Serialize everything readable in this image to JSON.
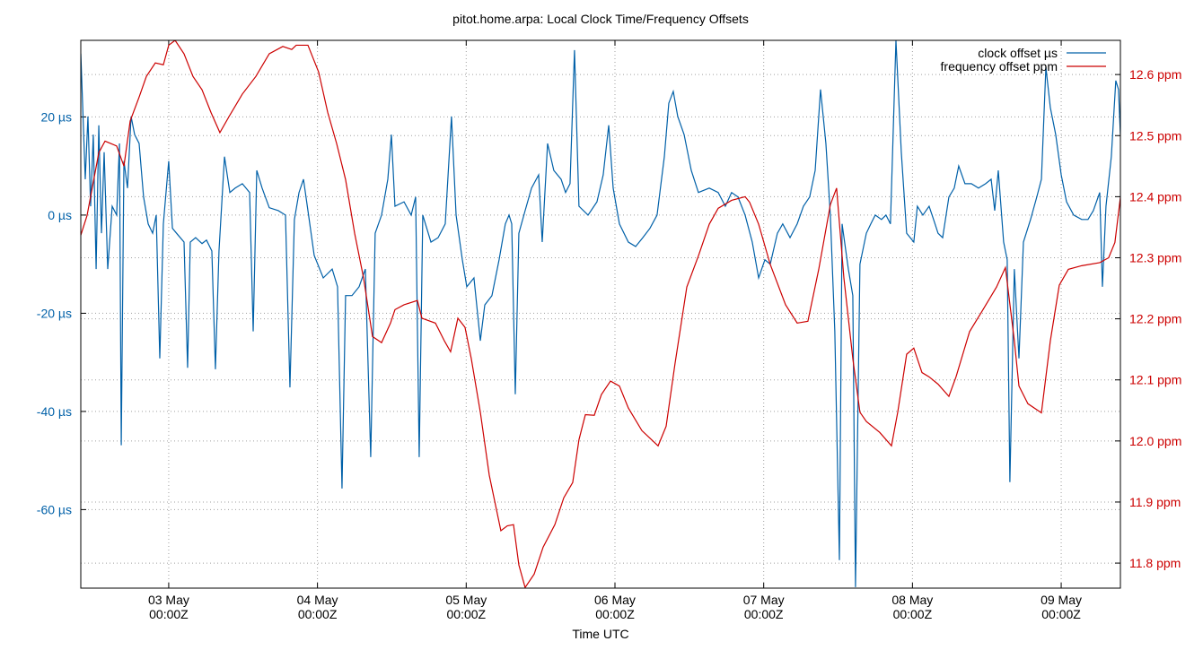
{
  "chart_data": {
    "type": "line",
    "title": "pitot.home.arpa: Local Clock Time/Frequency Offsets",
    "x_label": "Time UTC",
    "xlim": [
      2.409,
      9.398
    ],
    "xticks": [
      {
        "value": 3,
        "label": [
          "03 May",
          "00:00Z"
        ]
      },
      {
        "value": 4,
        "label": [
          "04 May",
          "00:00Z"
        ]
      },
      {
        "value": 5,
        "label": [
          "05 May",
          "00:00Z"
        ]
      },
      {
        "value": 6,
        "label": [
          "06 May",
          "00:00Z"
        ]
      },
      {
        "value": 7,
        "label": [
          "07 May",
          "00:00Z"
        ]
      },
      {
        "value": 8,
        "label": [
          "08 May",
          "00:00Z"
        ]
      },
      {
        "value": 9,
        "label": [
          "09 May",
          "00:00Z"
        ]
      }
    ],
    "ylim": [
      -76,
      35.6
    ],
    "yticks": [
      {
        "value": -60,
        "label": "-60 µs"
      },
      {
        "value": -40,
        "label": "-40 µs"
      },
      {
        "value": -20,
        "label": "-20 µs"
      },
      {
        "value": 0,
        "label": "0 µs"
      },
      {
        "value": 20,
        "label": "20 µs"
      }
    ],
    "y2lim": [
      11.759,
      12.656
    ],
    "y2ticks": [
      {
        "value": 11.8,
        "label": "11.8 ppm"
      },
      {
        "value": 11.9,
        "label": "11.9 ppm"
      },
      {
        "value": 12.0,
        "label": "12.0 ppm"
      },
      {
        "value": 12.1,
        "label": "12.1 ppm"
      },
      {
        "value": 12.2,
        "label": "12.2 ppm"
      },
      {
        "value": 12.3,
        "label": "12.3 ppm"
      },
      {
        "value": 12.4,
        "label": "12.4 ppm"
      },
      {
        "value": 12.5,
        "label": "12.5 ppm"
      },
      {
        "value": 12.6,
        "label": "12.6 ppm"
      }
    ],
    "grid": true,
    "legend": "top-right",
    "series": [
      {
        "name": "clock offset µs",
        "color": "#0060a8",
        "x": [
          2.409,
          2.421,
          2.439,
          2.457,
          2.475,
          2.493,
          2.512,
          2.53,
          2.548,
          2.566,
          2.59,
          2.62,
          2.65,
          2.669,
          2.681,
          2.699,
          2.723,
          2.747,
          2.771,
          2.801,
          2.831,
          2.862,
          2.892,
          2.916,
          2.94,
          2.964,
          3.0,
          3.025,
          3.061,
          3.103,
          3.127,
          3.145,
          3.181,
          3.224,
          3.254,
          3.29,
          3.314,
          3.338,
          3.375,
          3.411,
          3.447,
          3.495,
          3.544,
          3.568,
          3.592,
          3.628,
          3.676,
          3.737,
          3.785,
          3.815,
          3.845,
          3.876,
          3.906,
          3.936,
          3.978,
          4.039,
          4.099,
          4.135,
          4.165,
          4.189,
          4.232,
          4.28,
          4.322,
          4.358,
          4.388,
          4.431,
          4.473,
          4.497,
          4.521,
          4.582,
          4.63,
          4.66,
          4.684,
          4.708,
          4.763,
          4.811,
          4.859,
          4.901,
          4.932,
          4.974,
          5.004,
          5.052,
          5.095,
          5.125,
          5.173,
          5.221,
          5.263,
          5.288,
          5.306,
          5.33,
          5.354,
          5.396,
          5.439,
          5.487,
          5.511,
          5.547,
          5.589,
          5.638,
          5.668,
          5.698,
          5.728,
          5.758,
          5.819,
          5.879,
          5.921,
          5.958,
          5.988,
          6.03,
          6.09,
          6.139,
          6.187,
          6.235,
          6.283,
          6.332,
          6.362,
          6.392,
          6.422,
          6.465,
          6.513,
          6.561,
          6.634,
          6.694,
          6.742,
          6.784,
          6.827,
          6.875,
          6.923,
          6.966,
          7.008,
          7.044,
          7.092,
          7.128,
          7.177,
          7.225,
          7.267,
          7.309,
          7.346,
          7.382,
          7.418,
          7.448,
          7.478,
          7.509,
          7.527,
          7.569,
          7.599,
          7.617,
          7.647,
          7.69,
          7.72,
          7.75,
          7.792,
          7.822,
          7.852,
          7.889,
          7.925,
          7.961,
          8.009,
          8.033,
          8.07,
          8.112,
          8.142,
          8.172,
          8.203,
          8.245,
          8.281,
          8.311,
          8.353,
          8.396,
          8.444,
          8.492,
          8.529,
          8.553,
          8.577,
          8.613,
          8.637,
          8.655,
          8.685,
          8.716,
          8.746,
          8.794,
          8.836,
          8.867,
          8.897,
          8.927,
          8.963,
          9.0,
          9.036,
          9.084,
          9.138,
          9.18,
          9.216,
          9.259,
          9.277,
          9.301,
          9.337,
          9.367,
          9.385,
          9.398
        ],
        "values": [
          32.9,
          22.8,
          7.3,
          20.1,
          1.8,
          16.4,
          -11.0,
          18.3,
          -3.7,
          12.8,
          -11.0,
          1.8,
          0,
          14.6,
          -46.9,
          11.0,
          5.5,
          20.1,
          16.4,
          14.6,
          3.7,
          -1.8,
          -3.7,
          0,
          -29.2,
          -1.8,
          11.0,
          -2.7,
          -4.0,
          -5.5,
          -31.1,
          -5.5,
          -4.6,
          -5.8,
          -5.1,
          -7.3,
          -31.4,
          -7.3,
          11.9,
          4.6,
          5.5,
          6.4,
          4.6,
          -23.7,
          9.1,
          5.5,
          1.5,
          0.9,
          0,
          -35.1,
          -0.9,
          4.6,
          7.3,
          0.9,
          -8.2,
          -12.8,
          -11.0,
          -14.6,
          -55.7,
          -16.4,
          -16.4,
          -14.6,
          -11.0,
          -49.3,
          -3.7,
          0,
          7.3,
          16.4,
          1.8,
          2.7,
          0,
          3.7,
          -49.3,
          0,
          -5.5,
          -4.6,
          -1.8,
          20.1,
          0,
          -9.1,
          -14.6,
          -12.8,
          -25.6,
          -18.3,
          -16.4,
          -9.1,
          -1.8,
          0,
          -1.8,
          -36.5,
          -3.7,
          0.9,
          5.5,
          8.2,
          -5.5,
          14.6,
          9.1,
          7.3,
          4.6,
          6.4,
          33.6,
          1.8,
          0,
          2.7,
          8.2,
          18.3,
          5.5,
          -1.8,
          -5.5,
          -6.4,
          -4.6,
          -2.7,
          0,
          11.9,
          22.8,
          25.2,
          20.1,
          16.4,
          9.1,
          4.6,
          5.5,
          4.6,
          1.8,
          4.6,
          3.7,
          0,
          -5.5,
          -12.8,
          -9.1,
          -10.0,
          -3.7,
          -1.8,
          -4.6,
          -1.8,
          1.8,
          3.7,
          9.1,
          25.6,
          14.6,
          0,
          -23.7,
          -70.3,
          -1.8,
          -11.0,
          -16.4,
          -75.8,
          -10.0,
          -3.7,
          -1.8,
          0,
          -0.9,
          0,
          -1.8,
          35.6,
          12.8,
          -3.7,
          -5.5,
          1.8,
          0,
          1.8,
          -0.9,
          -3.7,
          -4.6,
          3.7,
          5.5,
          10.0,
          6.4,
          6.4,
          5.5,
          6.4,
          7.3,
          0.9,
          9.1,
          -5.5,
          -9.1,
          -54.4,
          -11.0,
          -29.2,
          -5.5,
          -0.9,
          3.7,
          7.3,
          30.1,
          21.9,
          16.4,
          8.2,
          2.7,
          0,
          -0.9,
          -0.9,
          0.9,
          4.6,
          -14.6,
          1.8,
          11.9,
          27.4,
          25.6,
          16.4
        ]
      },
      {
        "name": "frequency offset ppm",
        "color": "#cc0000",
        "axis": "y2",
        "x": [
          2.409,
          2.451,
          2.53,
          2.572,
          2.65,
          2.699,
          2.741,
          2.801,
          2.85,
          2.91,
          2.964,
          3.0,
          3.043,
          3.103,
          3.163,
          3.224,
          3.284,
          3.344,
          3.405,
          3.495,
          3.586,
          3.676,
          3.767,
          3.827,
          3.857,
          3.936,
          4.008,
          4.069,
          4.129,
          4.189,
          4.25,
          4.31,
          4.37,
          4.431,
          4.491,
          4.521,
          4.582,
          4.672,
          4.702,
          4.793,
          4.853,
          4.895,
          4.944,
          4.992,
          5.034,
          5.095,
          5.155,
          5.233,
          5.276,
          5.318,
          5.354,
          5.396,
          5.457,
          5.517,
          5.596,
          5.656,
          5.716,
          5.758,
          5.801,
          5.861,
          5.909,
          5.97,
          6.03,
          6.09,
          6.181,
          6.29,
          6.344,
          6.404,
          6.483,
          6.561,
          6.634,
          6.694,
          6.784,
          6.875,
          6.905,
          6.966,
          7.044,
          7.147,
          7.225,
          7.297,
          7.37,
          7.448,
          7.49,
          7.539,
          7.599,
          7.647,
          7.69,
          7.78,
          7.859,
          7.901,
          7.961,
          8.009,
          8.064,
          8.112,
          8.172,
          8.245,
          8.293,
          8.384,
          8.474,
          8.565,
          8.625,
          8.685,
          8.716,
          8.776,
          8.867,
          8.927,
          8.987,
          9.048,
          9.138,
          9.259,
          9.319,
          9.361,
          9.398
        ],
        "values": [
          12.337,
          12.369,
          12.472,
          12.491,
          12.483,
          12.45,
          12.524,
          12.563,
          12.597,
          12.619,
          12.616,
          12.648,
          12.656,
          12.634,
          12.597,
          12.575,
          12.538,
          12.505,
          12.531,
          12.568,
          12.597,
          12.634,
          12.646,
          12.641,
          12.648,
          12.648,
          12.604,
          12.538,
          12.487,
          12.428,
          12.34,
          12.267,
          12.171,
          12.161,
          12.193,
          12.215,
          12.223,
          12.23,
          12.201,
          12.193,
          12.164,
          12.146,
          12.201,
          12.186,
          12.135,
          12.047,
          11.944,
          11.853,
          11.861,
          11.863,
          11.797,
          11.76,
          11.782,
          11.826,
          11.863,
          11.907,
          11.932,
          12.002,
          12.043,
          12.042,
          12.076,
          12.098,
          12.09,
          12.054,
          12.017,
          11.992,
          12.024,
          12.127,
          12.252,
          12.303,
          12.355,
          12.381,
          12.394,
          12.4,
          12.391,
          12.355,
          12.289,
          12.223,
          12.193,
          12.196,
          12.281,
          12.387,
          12.414,
          12.267,
          12.135,
          12.047,
          12.032,
          12.014,
          11.992,
          12.047,
          12.142,
          12.152,
          12.112,
          12.105,
          12.093,
          12.073,
          12.105,
          12.179,
          12.215,
          12.252,
          12.284,
          12.164,
          12.09,
          12.061,
          12.046,
          12.164,
          12.255,
          12.281,
          12.287,
          12.292,
          12.3,
          12.325,
          12.399
        ]
      }
    ]
  }
}
